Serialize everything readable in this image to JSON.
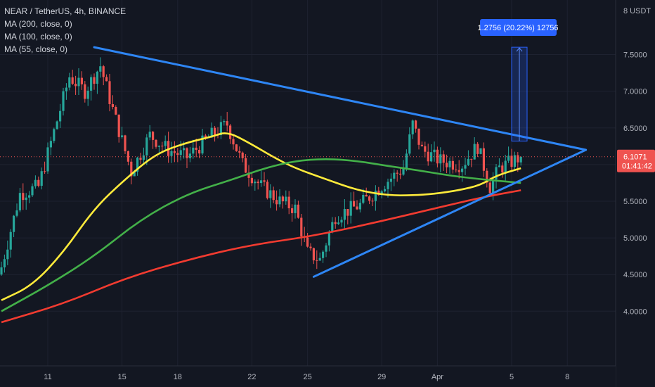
{
  "header": {
    "symbol_line": "NEAR / TetherUS, 4h, BINANCE",
    "indicators": [
      "MA (200, close, 0)",
      "MA (100, close, 0)",
      "MA (55, close, 0)"
    ]
  },
  "price_axis": {
    "currency": "8 USDT",
    "ticks": [
      "7.5000",
      "7.0000",
      "6.5000",
      "6.0000",
      "5.5000",
      "5.0000",
      "4.5000",
      "4.0000"
    ],
    "last_price": "6.1071",
    "countdown": "01:41:42"
  },
  "time_axis": {
    "ticks": [
      "11",
      "15",
      "18",
      "22",
      "25",
      "29",
      "Apr",
      "5",
      "8"
    ]
  },
  "measure_label": "1.2756 (20.22%) 12756",
  "colors": {
    "background": "#131722",
    "up": "#26a69a",
    "down": "#ef5350",
    "ma200": "#f23b30",
    "ma100": "#43b049",
    "ma55": "#ffeb3b",
    "trendline": "#2e86f5",
    "measure": "#2962ff"
  },
  "chart_data": {
    "type": "candlestick",
    "title": "NEAR / TetherUS, 4h, BINANCE",
    "ylim": [
      3.6,
      8.1
    ],
    "x_unit": "4h bar index (bar 0 = candle at 8 Mar 20:00)",
    "xlim": [
      0,
      168
    ],
    "date_ticks": [
      {
        "label": "11",
        "bar": 15
      },
      {
        "label": "15",
        "bar": 39
      },
      {
        "label": "18",
        "bar": 57
      },
      {
        "label": "22",
        "bar": 81
      },
      {
        "label": "25",
        "bar": 99
      },
      {
        "label": "29",
        "bar": 123
      },
      {
        "label": "Apr",
        "bar": 141
      },
      {
        "label": "5",
        "bar": 165
      },
      {
        "label": "8",
        "bar": 183
      }
    ],
    "close_anchors": [
      {
        "bar": 0,
        "close": 4.6
      },
      {
        "bar": 6,
        "close": 5.6
      },
      {
        "bar": 12,
        "close": 5.7
      },
      {
        "bar": 18,
        "close": 6.6
      },
      {
        "bar": 22,
        "close": 7.2
      },
      {
        "bar": 27,
        "close": 7.0
      },
      {
        "bar": 32,
        "close": 7.35
      },
      {
        "bar": 36,
        "close": 6.75
      },
      {
        "bar": 42,
        "close": 5.9
      },
      {
        "bar": 48,
        "close": 6.4
      },
      {
        "bar": 54,
        "close": 6.2
      },
      {
        "bar": 60,
        "close": 6.1
      },
      {
        "bar": 68,
        "close": 6.4
      },
      {
        "bar": 73,
        "close": 6.55
      },
      {
        "bar": 78,
        "close": 6.0
      },
      {
        "bar": 84,
        "close": 5.7
      },
      {
        "bar": 90,
        "close": 5.5
      },
      {
        "bar": 95,
        "close": 5.4
      },
      {
        "bar": 99,
        "close": 4.8
      },
      {
        "bar": 103,
        "close": 4.7
      },
      {
        "bar": 108,
        "close": 5.3
      },
      {
        "bar": 116,
        "close": 5.45
      },
      {
        "bar": 124,
        "close": 5.75
      },
      {
        "bar": 130,
        "close": 5.95
      },
      {
        "bar": 133,
        "close": 6.55
      },
      {
        "bar": 136,
        "close": 6.2
      },
      {
        "bar": 142,
        "close": 6.05
      },
      {
        "bar": 149,
        "close": 6.0
      },
      {
        "bar": 154,
        "close": 6.25
      },
      {
        "bar": 158,
        "close": 5.7
      },
      {
        "bar": 161,
        "close": 5.95
      },
      {
        "bar": 168,
        "close": 6.1071
      }
    ],
    "series": [
      {
        "name": "MA (55, close, 0)",
        "points": [
          [
            0,
            4.15
          ],
          [
            10,
            4.35
          ],
          [
            20,
            4.8
          ],
          [
            30,
            5.4
          ],
          [
            40,
            5.8
          ],
          [
            50,
            6.15
          ],
          [
            60,
            6.3
          ],
          [
            68,
            6.38
          ],
          [
            73,
            6.45
          ],
          [
            80,
            6.3
          ],
          [
            88,
            6.1
          ],
          [
            95,
            5.95
          ],
          [
            105,
            5.8
          ],
          [
            115,
            5.65
          ],
          [
            125,
            5.58
          ],
          [
            133,
            5.58
          ],
          [
            140,
            5.6
          ],
          [
            148,
            5.65
          ],
          [
            155,
            5.72
          ],
          [
            160,
            5.85
          ],
          [
            168,
            5.95
          ]
        ]
      },
      {
        "name": "MA (100, close, 0)",
        "points": [
          [
            0,
            4.0
          ],
          [
            15,
            4.35
          ],
          [
            30,
            4.75
          ],
          [
            45,
            5.25
          ],
          [
            60,
            5.6
          ],
          [
            75,
            5.8
          ],
          [
            85,
            5.95
          ],
          [
            95,
            6.05
          ],
          [
            105,
            6.08
          ],
          [
            115,
            6.05
          ],
          [
            125,
            5.98
          ],
          [
            135,
            5.92
          ],
          [
            145,
            5.85
          ],
          [
            155,
            5.8
          ],
          [
            168,
            5.75
          ]
        ]
      },
      {
        "name": "MA (200, close, 0)",
        "points": [
          [
            0,
            3.85
          ],
          [
            20,
            4.1
          ],
          [
            40,
            4.45
          ],
          [
            60,
            4.7
          ],
          [
            80,
            4.9
          ],
          [
            100,
            5.02
          ],
          [
            120,
            5.2
          ],
          [
            140,
            5.4
          ],
          [
            155,
            5.55
          ],
          [
            168,
            5.65
          ]
        ]
      }
    ],
    "trendlines": [
      {
        "label": "resistance",
        "from": {
          "bar": 30,
          "price": 7.6
        },
        "to": {
          "bar": 189,
          "price": 6.2
        }
      },
      {
        "label": "support",
        "from": {
          "bar": 101,
          "price": 4.47
        },
        "to": {
          "bar": 189,
          "price": 6.2
        }
      }
    ],
    "measure": {
      "from_price": 6.32,
      "to_price": 7.6,
      "text": "1.2756 (20.22%) 12756"
    }
  }
}
